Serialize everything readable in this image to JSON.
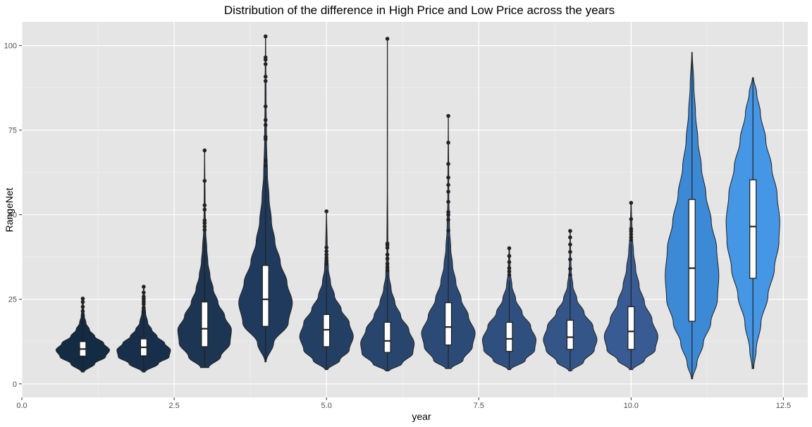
{
  "chart_data": {
    "type": "violin",
    "title": "Distribution of the difference in High Price and Low Price across the years",
    "xlabel": "year",
    "ylabel": "RangeNet",
    "xlim": [
      0,
      12.9
    ],
    "ylim": [
      -4,
      107
    ],
    "x_ticks": [
      0,
      2.5,
      5,
      7.5,
      10,
      12.5
    ],
    "x_tick_labels": [
      "0.0",
      "2.5",
      "5.0",
      "7.5",
      "10.0",
      "12.5"
    ],
    "y_ticks": [
      0,
      25,
      50,
      75,
      100
    ],
    "y_tick_labels": [
      "0",
      "25",
      "50",
      "75",
      "100"
    ],
    "grid": true,
    "legend": "none",
    "background": "#e5e5e5",
    "groups": [
      {
        "year": 1,
        "fill": "#132b43",
        "min": 3.5,
        "max": 25.2,
        "q1": 8.2,
        "median": 10.3,
        "q3": 12.5,
        "whisker_low": 3.5,
        "whisker_high": 19,
        "outliers": [
          20.2,
          21.5,
          22.8,
          24.2,
          25.2
        ],
        "profile": [
          [
            3.5,
            0.05
          ],
          [
            6,
            0.45
          ],
          [
            8,
            0.85
          ],
          [
            10,
            1.0
          ],
          [
            12,
            0.78
          ],
          [
            14,
            0.45
          ],
          [
            16,
            0.25
          ],
          [
            18,
            0.12
          ],
          [
            20,
            0.06
          ],
          [
            22,
            0.03
          ],
          [
            25.2,
            0.01
          ]
        ]
      },
      {
        "year": 2,
        "fill": "#172f4a",
        "min": 3.5,
        "max": 28.7,
        "q1": 8.3,
        "median": 10.8,
        "q3": 13.3,
        "whisker_low": 3.5,
        "whisker_high": 20.5,
        "outliers": [
          21.2,
          22.5,
          23.6,
          24.3,
          25.1,
          25.8,
          27.0,
          28.7
        ],
        "profile": [
          [
            3.5,
            0.05
          ],
          [
            6,
            0.55
          ],
          [
            8,
            0.95
          ],
          [
            10,
            1.0
          ],
          [
            12,
            0.78
          ],
          [
            14,
            0.5
          ],
          [
            16,
            0.3
          ],
          [
            18,
            0.15
          ],
          [
            21,
            0.07
          ],
          [
            24,
            0.03
          ],
          [
            28.7,
            0.01
          ]
        ]
      },
      {
        "year": 3,
        "fill": "#1b3553",
        "min": 4.8,
        "max": 69,
        "q1": 11,
        "median": 16.3,
        "q3": 24.2,
        "whisker_low": 4.8,
        "whisker_high": 43.5,
        "outliers": [
          45.5,
          46.5,
          47.5,
          48.3,
          51.5,
          52.8,
          60,
          69
        ],
        "profile": [
          [
            4.8,
            0.15
          ],
          [
            8,
            0.6
          ],
          [
            12,
            0.95
          ],
          [
            16,
            1.0
          ],
          [
            20,
            0.75
          ],
          [
            24,
            0.5
          ],
          [
            28,
            0.32
          ],
          [
            32,
            0.2
          ],
          [
            36,
            0.12
          ],
          [
            40,
            0.08
          ],
          [
            45,
            0.04
          ],
          [
            52,
            0.02
          ],
          [
            69,
            0.005
          ]
        ]
      },
      {
        "year": 4,
        "fill": "#1f3a5c",
        "min": 6.5,
        "max": 102.7,
        "q1": 17,
        "median": 25,
        "q3": 35,
        "whisker_low": 6.5,
        "whisker_high": 61.5,
        "outliers": [
          64.5,
          66,
          72.3,
          73,
          76.5,
          78,
          82,
          89.5,
          90.8,
          94.5,
          95.8,
          96.5,
          102.7
        ],
        "profile": [
          [
            6.5,
            0.02
          ],
          [
            12,
            0.3
          ],
          [
            18,
            0.85
          ],
          [
            24,
            1.0
          ],
          [
            30,
            0.8
          ],
          [
            36,
            0.55
          ],
          [
            42,
            0.35
          ],
          [
            48,
            0.22
          ],
          [
            55,
            0.13
          ],
          [
            62,
            0.07
          ],
          [
            72,
            0.035
          ],
          [
            85,
            0.02
          ],
          [
            102.7,
            0.005
          ]
        ]
      },
      {
        "year": 5,
        "fill": "#234064",
        "min": 4.2,
        "max": 51,
        "q1": 11,
        "median": 16,
        "q3": 20.5,
        "whisker_low": 4.2,
        "whisker_high": 33.8,
        "outliers": [
          35.5,
          36.5,
          37.3,
          38.2,
          39.2,
          40.3,
          51
        ],
        "profile": [
          [
            4.2,
            0.05
          ],
          [
            7,
            0.5
          ],
          [
            10,
            0.85
          ],
          [
            14,
            1.0
          ],
          [
            18,
            0.85
          ],
          [
            22,
            0.55
          ],
          [
            26,
            0.3
          ],
          [
            30,
            0.15
          ],
          [
            34,
            0.07
          ],
          [
            40,
            0.03
          ],
          [
            51,
            0.005
          ]
        ]
      },
      {
        "year": 6,
        "fill": "#27456d",
        "min": 3.8,
        "max": 102,
        "q1": 9.3,
        "median": 12.7,
        "q3": 18.2,
        "whisker_low": 3.8,
        "whisker_high": 32.5,
        "outliers": [
          33.5,
          34.5,
          35.5,
          37,
          38.2,
          40.2,
          41,
          41.5,
          102
        ],
        "profile": [
          [
            3.8,
            0.05
          ],
          [
            6,
            0.55
          ],
          [
            9,
            0.95
          ],
          [
            12,
            1.0
          ],
          [
            16,
            0.8
          ],
          [
            20,
            0.5
          ],
          [
            24,
            0.28
          ],
          [
            28,
            0.14
          ],
          [
            32,
            0.06
          ],
          [
            40,
            0.02
          ],
          [
            60,
            0.006
          ],
          [
            102,
            0.004
          ]
        ]
      },
      {
        "year": 7,
        "fill": "#2b4b76",
        "min": 4.5,
        "max": 79.2,
        "q1": 11.5,
        "median": 16.8,
        "q3": 24,
        "whisker_low": 4.5,
        "whisker_high": 43.5,
        "outliers": [
          45.3,
          48.5,
          50,
          50.8,
          53.8,
          56.8,
          58.8,
          61,
          65,
          71.3,
          79.2
        ],
        "profile": [
          [
            4.5,
            0.1
          ],
          [
            7,
            0.55
          ],
          [
            11,
            0.9
          ],
          [
            15,
            1.0
          ],
          [
            20,
            0.75
          ],
          [
            25,
            0.48
          ],
          [
            30,
            0.28
          ],
          [
            35,
            0.16
          ],
          [
            40,
            0.09
          ],
          [
            46,
            0.045
          ],
          [
            55,
            0.02
          ],
          [
            79.2,
            0.004
          ]
        ]
      },
      {
        "year": 8,
        "fill": "#2f507f",
        "min": 4.2,
        "max": 40.1,
        "q1": 9.6,
        "median": 13.3,
        "q3": 18.2,
        "whisker_low": 4.2,
        "whisker_high": 30.5,
        "outliers": [
          32.2,
          33.2,
          34.2,
          36,
          37.8,
          40.1
        ],
        "profile": [
          [
            4.2,
            0.05
          ],
          [
            7,
            0.6
          ],
          [
            10,
            0.95
          ],
          [
            13,
            1.0
          ],
          [
            17,
            0.8
          ],
          [
            21,
            0.48
          ],
          [
            25,
            0.24
          ],
          [
            29,
            0.1
          ],
          [
            33,
            0.04
          ],
          [
            40.1,
            0.01
          ]
        ]
      },
      {
        "year": 9,
        "fill": "#335588",
        "min": 3.8,
        "max": 45.2,
        "q1": 10.2,
        "median": 13.8,
        "q3": 18.8,
        "whisker_low": 3.8,
        "whisker_high": 31.2,
        "outliers": [
          32.2,
          34,
          36.8,
          39,
          41.2,
          43.3,
          45.2
        ],
        "profile": [
          [
            3.8,
            0.05
          ],
          [
            6.5,
            0.5
          ],
          [
            10,
            0.9
          ],
          [
            13,
            1.0
          ],
          [
            17,
            0.85
          ],
          [
            21,
            0.52
          ],
          [
            25,
            0.25
          ],
          [
            29,
            0.1
          ],
          [
            33,
            0.04
          ],
          [
            38,
            0.02
          ],
          [
            45.2,
            0.005
          ]
        ]
      },
      {
        "year": 10,
        "fill": "#375b92",
        "min": 4.2,
        "max": 53.5,
        "q1": 10.2,
        "median": 15.5,
        "q3": 22.8,
        "whisker_low": 4.2,
        "whisker_high": 41.5,
        "outliers": [
          42.5,
          43.3,
          44.2,
          45.1,
          45.8,
          48.7,
          53.5
        ],
        "profile": [
          [
            4.2,
            0.06
          ],
          [
            7,
            0.5
          ],
          [
            10,
            0.9
          ],
          [
            14,
            1.0
          ],
          [
            19,
            0.78
          ],
          [
            24,
            0.5
          ],
          [
            29,
            0.3
          ],
          [
            34,
            0.17
          ],
          [
            39,
            0.09
          ],
          [
            44,
            0.04
          ],
          [
            53.5,
            0.008
          ]
        ]
      },
      {
        "year": 11,
        "fill": "#3c89d6",
        "min": 1.5,
        "max": 98,
        "q1": 18.5,
        "median": 34.2,
        "q3": 54.5,
        "whisker_low": 1.5,
        "whisker_high": 98,
        "outliers": [],
        "profile": [
          [
            1.5,
            0.02
          ],
          [
            6,
            0.18
          ],
          [
            12,
            0.42
          ],
          [
            18,
            0.7
          ],
          [
            25,
            0.95
          ],
          [
            32,
            1.0
          ],
          [
            40,
            0.92
          ],
          [
            48,
            0.72
          ],
          [
            56,
            0.52
          ],
          [
            64,
            0.35
          ],
          [
            72,
            0.22
          ],
          [
            80,
            0.13
          ],
          [
            88,
            0.07
          ],
          [
            98,
            0.01
          ]
        ]
      },
      {
        "year": 12,
        "fill": "#4596e4",
        "min": 4.5,
        "max": 90.5,
        "q1": 31.2,
        "median": 46.5,
        "q3": 60.3,
        "whisker_low": 4.5,
        "whisker_high": 90.5,
        "outliers": [],
        "profile": [
          [
            4.5,
            0.03
          ],
          [
            10,
            0.12
          ],
          [
            18,
            0.3
          ],
          [
            26,
            0.56
          ],
          [
            34,
            0.8
          ],
          [
            42,
            0.97
          ],
          [
            48,
            1.0
          ],
          [
            56,
            0.9
          ],
          [
            64,
            0.7
          ],
          [
            72,
            0.48
          ],
          [
            80,
            0.28
          ],
          [
            86,
            0.14
          ],
          [
            90.5,
            0.02
          ]
        ]
      }
    ]
  }
}
